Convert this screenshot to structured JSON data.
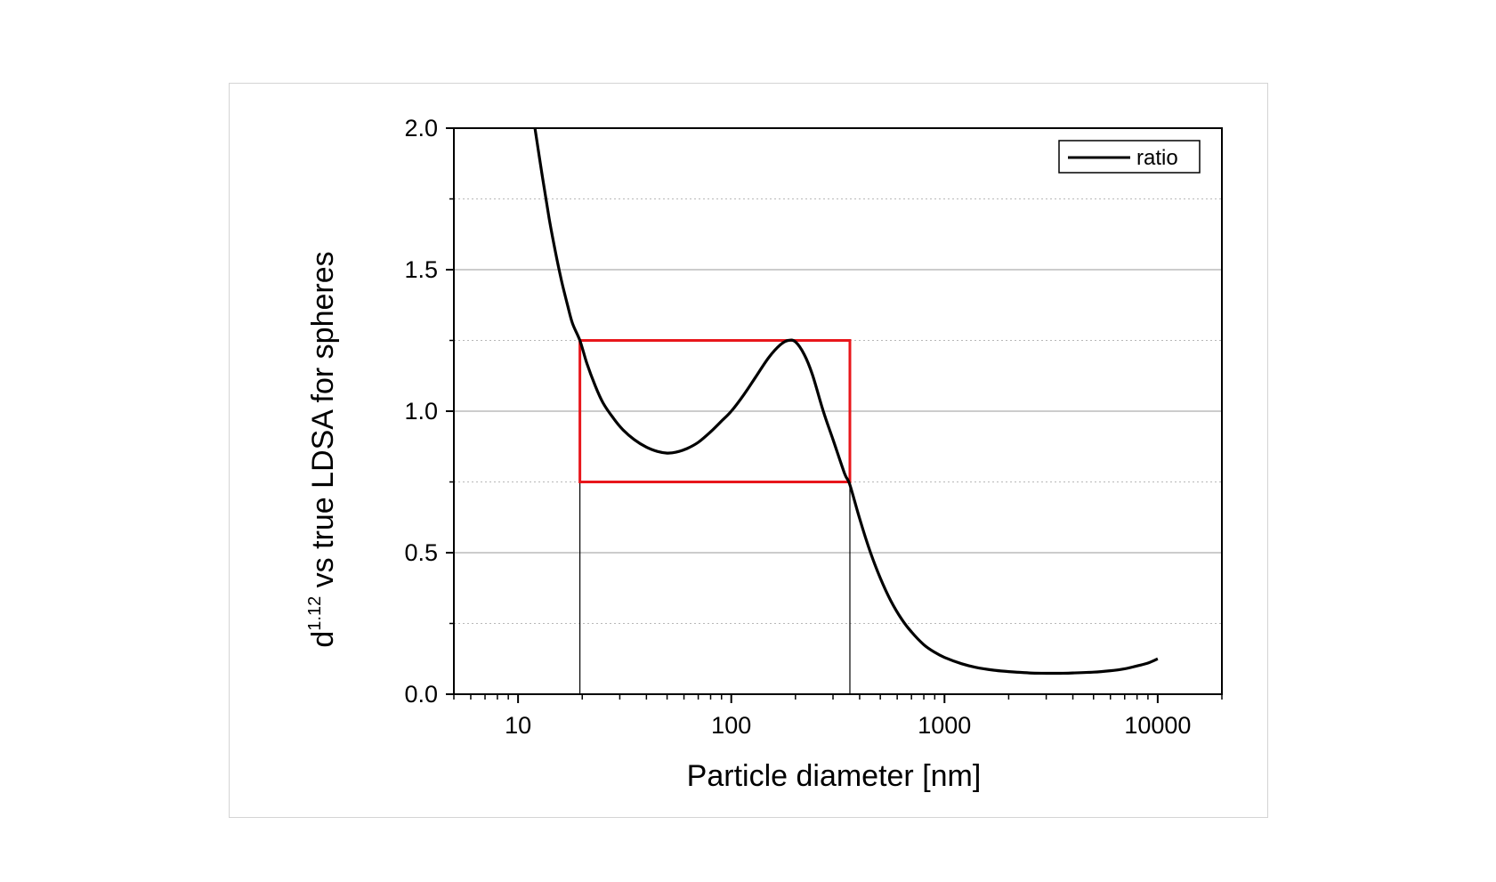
{
  "chart_data": {
    "type": "line",
    "title": "",
    "xlabel": "Particle diameter [nm]",
    "ylabel_base": "d",
    "ylabel_exponent": "1.12",
    "ylabel_rest": " vs true LDSA for spheres",
    "xscale": "log",
    "xlim": [
      5,
      20000
    ],
    "ylim": [
      0,
      2.0
    ],
    "x_ticks": [
      10,
      100,
      1000,
      10000
    ],
    "x_tick_labels": [
      "10",
      "100",
      "1000",
      "10000"
    ],
    "y_ticks": [
      0.0,
      0.5,
      1.0,
      1.5,
      2.0
    ],
    "y_tick_labels": [
      "0.0",
      "0.5",
      "1.0",
      "1.5",
      "2.0"
    ],
    "grid": {
      "major_y": true,
      "minor_y": true
    },
    "legend": {
      "position": "top-right",
      "entries": [
        "ratio"
      ]
    },
    "series": [
      {
        "name": "ratio",
        "color": "#000000",
        "x": [
          12,
          13,
          14,
          15,
          16,
          17,
          18,
          19.5,
          21,
          23,
          25,
          28,
          31,
          35,
          40,
          45,
          50,
          55,
          62,
          70,
          80,
          90,
          100,
          115,
          130,
          150,
          170,
          185,
          200,
          220,
          240,
          270,
          300,
          340,
          360,
          400,
          450,
          500,
          560,
          630,
          700,
          800,
          900,
          1000,
          1200,
          1400,
          1700,
          2000,
          2500,
          3000,
          3500,
          4000,
          5000,
          6000,
          7000,
          8000,
          9000,
          10000
        ],
        "y": [
          2.0,
          1.83,
          1.68,
          1.56,
          1.46,
          1.38,
          1.31,
          1.25,
          1.17,
          1.09,
          1.03,
          0.975,
          0.935,
          0.9,
          0.873,
          0.858,
          0.852,
          0.855,
          0.868,
          0.89,
          0.927,
          0.965,
          1.0,
          1.06,
          1.12,
          1.19,
          1.235,
          1.25,
          1.245,
          1.2,
          1.13,
          1.0,
          0.9,
          0.78,
          0.74,
          0.62,
          0.5,
          0.41,
          0.33,
          0.265,
          0.22,
          0.175,
          0.148,
          0.13,
          0.108,
          0.095,
          0.085,
          0.08,
          0.075,
          0.074,
          0.074,
          0.075,
          0.078,
          0.083,
          0.09,
          0.1,
          0.11,
          0.125
        ]
      }
    ],
    "annotations": {
      "highlight_box": {
        "color": "#e8161b",
        "x_range": [
          19.5,
          360
        ],
        "y_range": [
          0.75,
          1.25
        ]
      },
      "vertical_markers": [
        19.5,
        360
      ]
    }
  }
}
